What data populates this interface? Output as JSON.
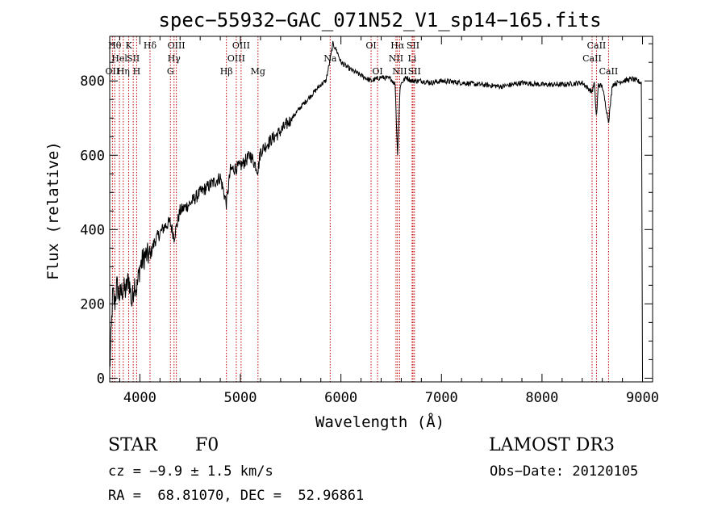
{
  "header": {
    "title": "spec−55932−GAC_071N52_V1_sp14−165.fits"
  },
  "info": {
    "object_class": "STAR",
    "subclass": "F0",
    "survey": "LAMOST DR3",
    "cz": "cz = −9.9 ± 1.5 km/s",
    "obs_date": "Obs−Date: 20120105",
    "coords": "RA =  68.81070, DEC =  52.96861"
  },
  "chart_data": {
    "type": "line",
    "title": "spec−55932−GAC_071N52_V1_sp14−165.fits",
    "xlabel": "Wavelength (Å)",
    "ylabel": "Flux (relative)",
    "xlim": [
      3700,
      9100
    ],
    "ylim": [
      -10,
      920
    ],
    "xticks": [
      4000,
      5000,
      6000,
      7000,
      8000,
      9000
    ],
    "yticks": [
      0,
      200,
      400,
      600,
      800
    ],
    "colors": {
      "spectrum": "#000000",
      "line_marker": "#c00000"
    },
    "spectrum_anchors": [
      [
        3700,
        20
      ],
      [
        3715,
        120
      ],
      [
        3730,
        230
      ],
      [
        3750,
        200
      ],
      [
        3770,
        250
      ],
      [
        3800,
        220
      ],
      [
        3830,
        240
      ],
      [
        3860,
        235
      ],
      [
        3890,
        270
      ],
      [
        3920,
        200
      ],
      [
        3945,
        260
      ],
      [
        3970,
        240
      ],
      [
        4000,
        300
      ],
      [
        4050,
        330
      ],
      [
        4101,
        330
      ],
      [
        4150,
        370
      ],
      [
        4200,
        390
      ],
      [
        4250,
        410
      ],
      [
        4300,
        420
      ],
      [
        4340,
        380
      ],
      [
        4400,
        450
      ],
      [
        4500,
        470
      ],
      [
        4600,
        500
      ],
      [
        4700,
        520
      ],
      [
        4800,
        540
      ],
      [
        4861,
        470
      ],
      [
        4900,
        560
      ],
      [
        5000,
        570
      ],
      [
        5100,
        600
      ],
      [
        5175,
        560
      ],
      [
        5200,
        610
      ],
      [
        5300,
        640
      ],
      [
        5400,
        665
      ],
      [
        5500,
        695
      ],
      [
        5600,
        730
      ],
      [
        5700,
        760
      ],
      [
        5800,
        790
      ],
      [
        5850,
        800
      ],
      [
        5895,
        860
      ],
      [
        5920,
        900
      ],
      [
        5960,
        880
      ],
      [
        6000,
        850
      ],
      [
        6050,
        840
      ],
      [
        6100,
        830
      ],
      [
        6200,
        815
      ],
      [
        6300,
        800
      ],
      [
        6400,
        810
      ],
      [
        6500,
        805
      ],
      [
        6540,
        790
      ],
      [
        6563,
        600
      ],
      [
        6590,
        790
      ],
      [
        6650,
        810
      ],
      [
        6700,
        800
      ],
      [
        6800,
        800
      ],
      [
        6900,
        795
      ],
      [
        7000,
        800
      ],
      [
        7200,
        795
      ],
      [
        7400,
        790
      ],
      [
        7600,
        785
      ],
      [
        7800,
        795
      ],
      [
        8000,
        790
      ],
      [
        8200,
        790
      ],
      [
        8400,
        795
      ],
      [
        8498,
        770
      ],
      [
        8520,
        795
      ],
      [
        8542,
        700
      ],
      [
        8560,
        790
      ],
      [
        8600,
        785
      ],
      [
        8662,
        690
      ],
      [
        8700,
        790
      ],
      [
        8800,
        800
      ],
      [
        8900,
        805
      ],
      [
        8990,
        795
      ],
      [
        9000,
        0
      ]
    ],
    "line_markers": [
      {
        "wavelength": 3727,
        "label": "OII",
        "row": 2
      },
      {
        "wavelength": 3750,
        "label": "Hθ",
        "row": 0
      },
      {
        "wavelength": 3797,
        "label": "Hel",
        "row": 1
      },
      {
        "wavelength": 3835,
        "label": "Hη",
        "row": 2
      },
      {
        "wavelength": 3889,
        "label": "K",
        "row": 0
      },
      {
        "wavelength": 3934,
        "label": "SII",
        "row": 1
      },
      {
        "wavelength": 3968,
        "label": "H",
        "row": 2
      },
      {
        "wavelength": 4101,
        "label": "Hδ",
        "row": 0
      },
      {
        "wavelength": 4304,
        "label": "G",
        "row": 2
      },
      {
        "wavelength": 4340,
        "label": "Hγ",
        "row": 1
      },
      {
        "wavelength": 4363,
        "label": "OIII",
        "row": 0
      },
      {
        "wavelength": 4861,
        "label": "Hβ",
        "row": 2
      },
      {
        "wavelength": 4959,
        "label": "OIII",
        "row": 1
      },
      {
        "wavelength": 5007,
        "label": "OIII",
        "row": 0
      },
      {
        "wavelength": 5175,
        "label": "Mg",
        "row": 2
      },
      {
        "wavelength": 5893,
        "label": "Na",
        "row": 1
      },
      {
        "wavelength": 6300,
        "label": "OI",
        "row": 0
      },
      {
        "wavelength": 6364,
        "label": "OI",
        "row": 2
      },
      {
        "wavelength": 6548,
        "label": "NII",
        "row": 1
      },
      {
        "wavelength": 6563,
        "label": "Hα",
        "row": 0
      },
      {
        "wavelength": 6584,
        "label": "NII",
        "row": 2
      },
      {
        "wavelength": 6708,
        "label": "Li",
        "row": 1
      },
      {
        "wavelength": 6717,
        "label": "SII",
        "row": 0
      },
      {
        "wavelength": 6731,
        "label": "SII",
        "row": 2
      },
      {
        "wavelength": 8498,
        "label": "CaII",
        "row": 1
      },
      {
        "wavelength": 8542,
        "label": "CaII",
        "row": 0
      },
      {
        "wavelength": 8662,
        "label": "CaII",
        "row": 2
      }
    ]
  }
}
